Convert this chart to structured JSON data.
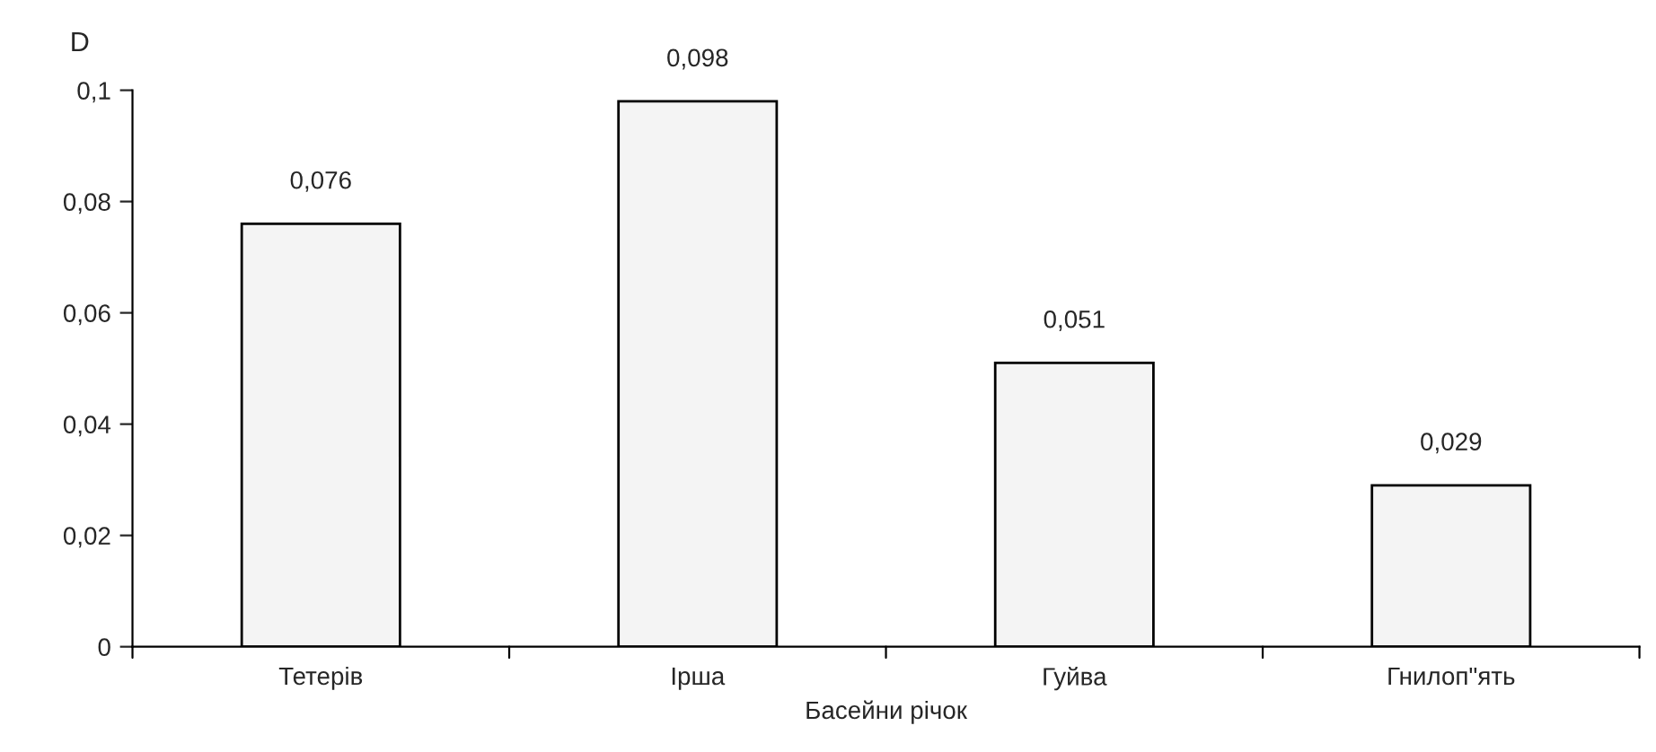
{
  "chart_data": {
    "type": "bar",
    "ylabel": "D",
    "xlabel": "Басейни річок",
    "categories": [
      "Тетерів",
      "Ірша",
      "Гуйва",
      "Гнилоп\"ять"
    ],
    "values": [
      0.076,
      0.098,
      0.051,
      0.029
    ],
    "value_labels": [
      "0,076",
      "0,098",
      "0,051",
      "0,029"
    ],
    "color": "#f4f4f4",
    "ylim": [
      0,
      0.1
    ],
    "yticks": [
      0,
      {
        "value": 0.02,
        "label": "0,02"
      },
      {
        "value": 0.04,
        "label": "0,04"
      },
      {
        "value": 0.06,
        "label": "0,06"
      },
      {
        "value": 0.08,
        "label": "0,08"
      },
      {
        "value": 0.1,
        "label": "0,1"
      }
    ],
    "grid": false
  }
}
